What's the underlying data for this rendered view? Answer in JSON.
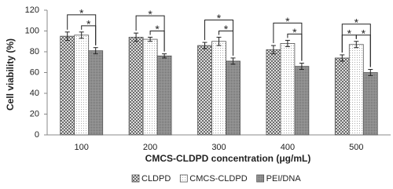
{
  "chart_data": {
    "type": "bar",
    "y_label": "Cell viability (%)",
    "x_label": "CMCS-CLDPD concentration (μg/mL)",
    "categories": [
      "100",
      "200",
      "300",
      "400",
      "500"
    ],
    "series": [
      {
        "name": "CLDPD",
        "color": "#666666",
        "pattern": "crosshatch",
        "values": [
          95,
          94,
          86,
          82,
          74
        ],
        "errors": [
          4,
          4,
          3,
          4,
          3
        ]
      },
      {
        "name": "CMCS-CLDPD",
        "color": "#aaaaaa",
        "pattern": "dots",
        "values": [
          96,
          92,
          90,
          88,
          87
        ],
        "errors": [
          3,
          2,
          4,
          3,
          3
        ]
      },
      {
        "name": "PEI/DNA",
        "color": "#777777",
        "pattern": "dense-dots",
        "values": [
          81,
          76,
          71,
          66,
          60
        ],
        "errors": [
          3,
          2,
          3,
          3,
          3
        ]
      }
    ],
    "significance": [
      {
        "group": 0,
        "from": 0,
        "to": 2,
        "label": "*"
      },
      {
        "group": 0,
        "from": 1,
        "to": 2,
        "label": "*"
      },
      {
        "group": 1,
        "from": 0,
        "to": 2,
        "label": "*"
      },
      {
        "group": 1,
        "from": 1,
        "to": 2,
        "label": "*"
      },
      {
        "group": 2,
        "from": 0,
        "to": 2,
        "label": "*"
      },
      {
        "group": 2,
        "from": 1,
        "to": 2,
        "label": "*"
      },
      {
        "group": 3,
        "from": 0,
        "to": 2,
        "label": "*"
      },
      {
        "group": 3,
        "from": 1,
        "to": 2,
        "label": "*"
      },
      {
        "group": 4,
        "from": 0,
        "to": 2,
        "label": "*"
      },
      {
        "group": 4,
        "from": 0,
        "to": 1,
        "label": "*"
      },
      {
        "group": 4,
        "from": 1,
        "to": 2,
        "label": "*"
      }
    ],
    "ylim": [
      0,
      120
    ],
    "yticks": [
      0,
      20,
      40,
      60,
      80,
      100,
      120
    ],
    "legend": "bottom"
  }
}
